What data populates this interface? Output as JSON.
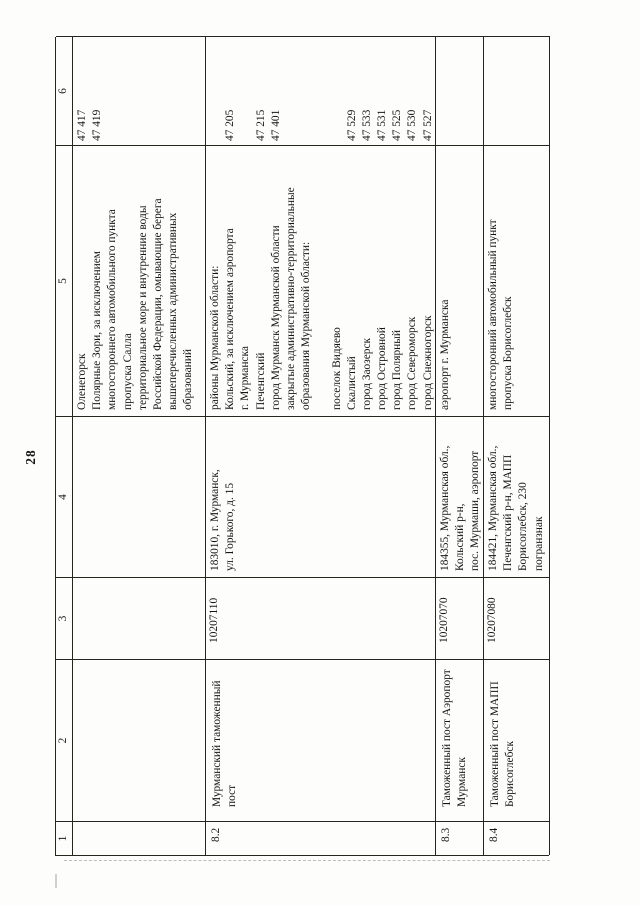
{
  "page": {
    "number": "28"
  },
  "table": {
    "header": [
      "1",
      "2",
      "3",
      "4",
      "5",
      "6"
    ],
    "rows": [
      {
        "id": "",
        "name_lines": [],
        "code": "",
        "address_lines": [],
        "area_lines": [
          "Оленегорск",
          "Полярные Зори, за исключением",
          "многостороннего автомобильного пункта",
          "пропуска Салла",
          "территориальное море и внутренние воды",
          "Российской Федерации, омывающие берега",
          "вышеперечисленных административных",
          "образований"
        ],
        "code6_lines": [
          "47 417",
          "47 419"
        ]
      },
      {
        "id": "8.2",
        "name_lines": [
          "Мурманский таможенный",
          "пост"
        ],
        "code": "10207110",
        "address_lines": [
          "183010, г. Мурманск,",
          "ул. Горького, д. 15"
        ],
        "area_lines": [
          "районы Мурманской области:",
          "Кольский, за исключением аэропорта",
          "г. Мурманска",
          "Печенгский",
          "город Мурманск Мурманской области",
          "закрытые административно-территориальные",
          "образования Мурманской области:",
          "",
          "поселок Видяево",
          "Скалистый",
          "город Заозерск",
          "город Островной",
          "город Полярный",
          "город Североморск",
          "город Снежногорск"
        ],
        "code6_lines": [
          "",
          "47 205",
          "",
          "47 215",
          "47 401",
          "",
          "",
          "",
          "",
          "47 529",
          "47 533",
          "47 531",
          "47 525",
          "47 530",
          "47 527"
        ]
      },
      {
        "id": "8.3",
        "name_lines": [
          "Таможенный пост Аэропорт",
          "Мурманск"
        ],
        "code": "10207070",
        "address_lines": [
          "184355, Мурманская обл.,",
          "Кольский р-н,",
          "пос. Мурмаши, аэропорт"
        ],
        "area_lines": [
          "аэропорт г. Мурманска"
        ],
        "code6_lines": []
      },
      {
        "id": "8.4",
        "name_lines": [
          "Таможенный пост МАПП",
          "Борисоглебск"
        ],
        "code": "10207080",
        "address_lines": [
          "184421, Мурманская обл.,",
          "Печенгский р-н, МАПП",
          "Борисоглебск, 230",
          "погранзнак"
        ],
        "area_lines": [
          "многосторонний автомобильный пункт",
          "пропуска Борисоглебск"
        ],
        "code6_lines": []
      }
    ]
  }
}
